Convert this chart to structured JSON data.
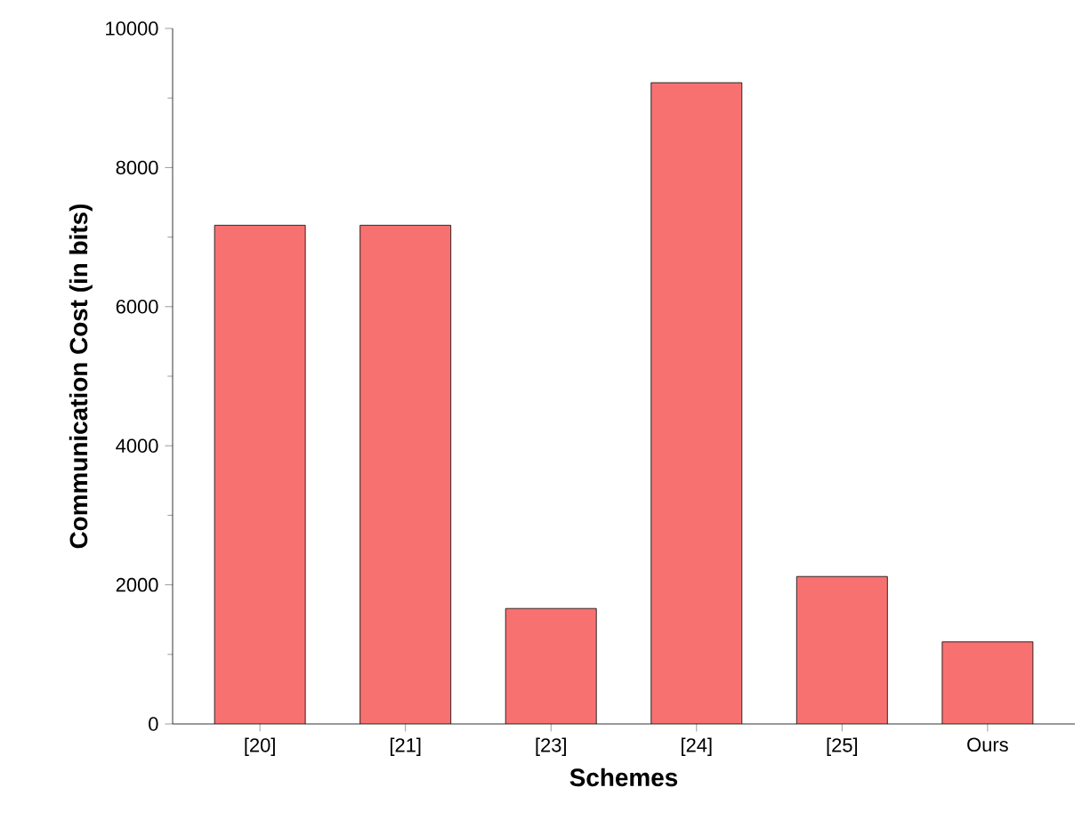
{
  "chart_data": {
    "type": "bar",
    "xlabel": "Schemes",
    "ylabel": "Communication Cost (in bits)",
    "categories": [
      "[20]",
      "[21]",
      "[23]",
      "[24]",
      "[25]",
      "Ours"
    ],
    "values": [
      7170,
      7170,
      1660,
      9220,
      2120,
      1180
    ],
    "color": "#f87171",
    "ylim": [
      0,
      10000
    ],
    "yticks": [
      0,
      2000,
      4000,
      6000,
      8000,
      10000
    ]
  }
}
